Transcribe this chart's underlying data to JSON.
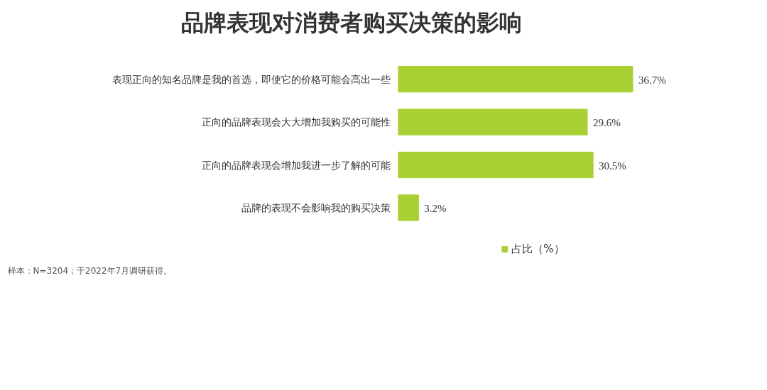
{
  "chart_data": {
    "type": "bar",
    "orientation": "horizontal",
    "title": "品牌表现对消费者购买决策的影响",
    "categories": [
      "表现正向的知名品牌是我的首选，即使它的价格可能会高出一些",
      "正向的品牌表现会大大增加我购买的可能性",
      "正向的品牌表现会增加我进一步了解的可能",
      "品牌的表现不会影响我的购买决策"
    ],
    "series": [
      {
        "name": "占比（%）",
        "color": "#a9d033",
        "values": [
          36.7,
          29.6,
          30.5,
          3.2
        ],
        "value_labels": [
          "36.7%",
          "29.6%",
          "30.5%",
          "3.2%"
        ]
      }
    ],
    "legend": "bottom",
    "grid": false,
    "annotations": [
      "样本：N=3204；于2022年7月调研获得。"
    ]
  }
}
